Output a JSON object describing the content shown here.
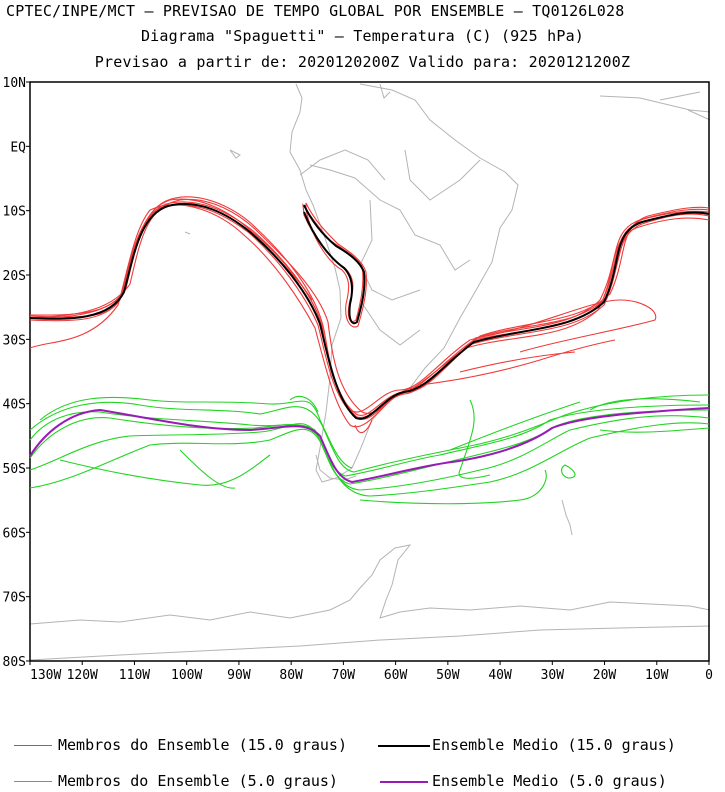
{
  "header": {
    "line1": "CPTEC/INPE/MCT — PREVISAO DE TEMPO GLOBAL POR ENSEMBLE — TQ0126L028",
    "line2": "Diagrama \"Spaguetti\" — Temperatura (C) (925 hPa)",
    "line3": "Previsao a partir de: 2020120200Z  Valido para: 2020121200Z"
  },
  "axes": {
    "lat_labels": [
      "10N",
      "EQ",
      "10S",
      "20S",
      "30S",
      "40S",
      "50S",
      "60S",
      "70S",
      "80S"
    ],
    "lon_labels": [
      "130W",
      "120W",
      "110W",
      "100W",
      "90W",
      "80W",
      "70W",
      "60W",
      "50W",
      "40W",
      "30W",
      "20W",
      "10W",
      "0"
    ],
    "lat_range": [
      -80,
      10
    ],
    "lon_range": [
      -130,
      0
    ]
  },
  "legend": {
    "red_members": "Membros do Ensemble (15.0 graus)",
    "black_mean": "Ensemble Medio (15.0 graus)",
    "green_members": "Membros do Ensemble (5.0 graus)",
    "purple_mean": "Ensemble Medio (5.0 graus)"
  },
  "colors": {
    "red": "#f03a3a",
    "black": "#000000",
    "green": "#22d422",
    "purple": "#9a1ab8",
    "coast": "#b4b4b4"
  }
}
